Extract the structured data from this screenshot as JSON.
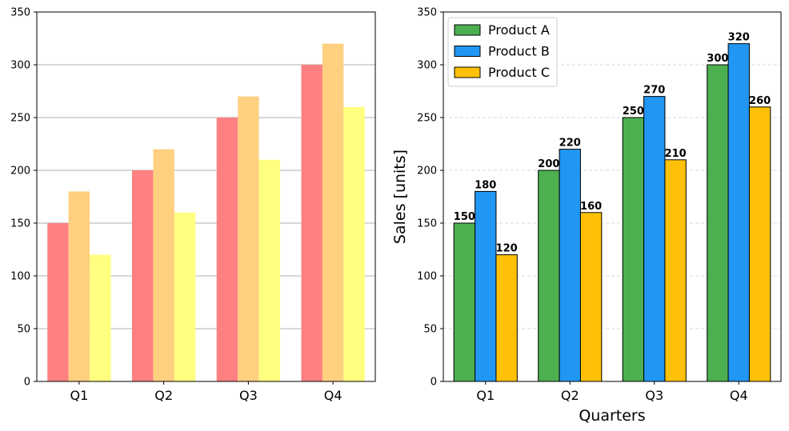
{
  "chart_data": [
    {
      "type": "bar",
      "title": "",
      "xlabel": "",
      "ylabel": "",
      "categories": [
        "Q1",
        "Q2",
        "Q3",
        "Q4"
      ],
      "ylim": [
        0,
        350
      ],
      "yticks": [
        "0",
        "50",
        "100",
        "150",
        "200",
        "250",
        "300",
        "350"
      ],
      "grid": "y-axis solid",
      "legend": "none",
      "series": [
        {
          "values": [
            150,
            200,
            250,
            300
          ],
          "color": "#ff8080"
        },
        {
          "values": [
            180,
            220,
            270,
            320
          ],
          "color": "#ffd080"
        },
        {
          "values": [
            120,
            160,
            210,
            260
          ],
          "color": "#ffff80"
        }
      ]
    },
    {
      "type": "bar",
      "title": "",
      "xlabel": "Quarters",
      "ylabel": "Sales [units]",
      "categories": [
        "Q1",
        "Q2",
        "Q3",
        "Q4"
      ],
      "ylim": [
        0,
        350
      ],
      "yticks": [
        "0",
        "50",
        "100",
        "150",
        "200",
        "250",
        "300",
        "350"
      ],
      "grid": "y-axis dashed",
      "legend": "top-left",
      "data_labels": true,
      "series": [
        {
          "name": "Product A",
          "values": [
            150,
            200,
            250,
            300
          ],
          "color": "#4caf50"
        },
        {
          "name": "Product B",
          "values": [
            180,
            220,
            270,
            320
          ],
          "color": "#2196f3"
        },
        {
          "name": "Product C",
          "values": [
            120,
            160,
            210,
            260
          ],
          "color": "#ffc107"
        }
      ]
    }
  ]
}
